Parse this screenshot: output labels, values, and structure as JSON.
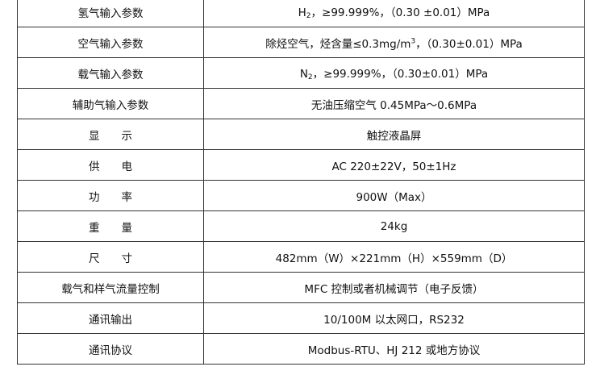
{
  "rows": [
    {
      "label": "氢气输入参数",
      "value_pre": "H",
      "value_sub": "2",
      "value_post": "，≥99.999%，（0.30  ±0.01）MPa"
    },
    {
      "label": "空气输入参数",
      "value_pre": "除烃空气，烃含量≤0.3mg/m",
      "value_sup": "3",
      "value_post": "，（0.30±0.01）MPa"
    },
    {
      "label": "载气输入参数",
      "value_pre": "N",
      "value_sub": "2",
      "value_post": "，≥99.999%，（0.30±0.01）MPa"
    },
    {
      "label": "辅助气输入参数",
      "value": "无油压缩空气 0.45MPa～0.6MPa"
    },
    {
      "label": "显　　示",
      "value": "触控液晶屏"
    },
    {
      "label": "供　　电",
      "value": "AC 220±22V，50±1Hz"
    },
    {
      "label": "功　　率",
      "value": "900W（Max）"
    },
    {
      "label": "重　　量",
      "value": "24kg"
    },
    {
      "label": "尺　　寸",
      "value": "482mm（W）×221mm（H）×559mm（D）"
    },
    {
      "label": "载气和样气流量控制",
      "value": "MFC 控制或者机械调节（电子反馈）"
    },
    {
      "label": "通讯输出",
      "value": "10/100M 以太网口，RS232"
    },
    {
      "label": "通讯协议",
      "value": "Modbus-RTU、HJ 212 或地方协议"
    }
  ]
}
